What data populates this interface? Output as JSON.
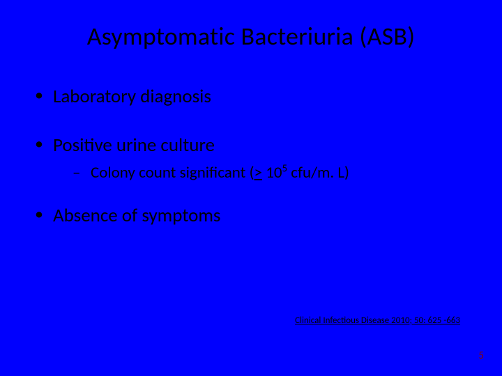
{
  "background_color": "#0000fe",
  "text_color": "#000000",
  "page_number_color": "#8b0000",
  "title": "Asymptomatic Bacteriuria (ASB)",
  "title_fontsize": 36,
  "bullets": {
    "item1": "Laboratory diagnosis",
    "item2": "Positive urine culture",
    "item2_sub_prefix": "Colony count significant (",
    "item2_sub_gte": ">",
    "item2_sub_base": " 10",
    "item2_sub_exp": "5",
    "item2_sub_suffix": " cfu/m. L)",
    "item3": "Absence of symptoms"
  },
  "level1_fontsize": 27,
  "level2_fontsize": 23,
  "citation": "Clinical Infectious Disease 2010; 50: 625 -663",
  "citation_fontsize": 13,
  "page_number": "5"
}
